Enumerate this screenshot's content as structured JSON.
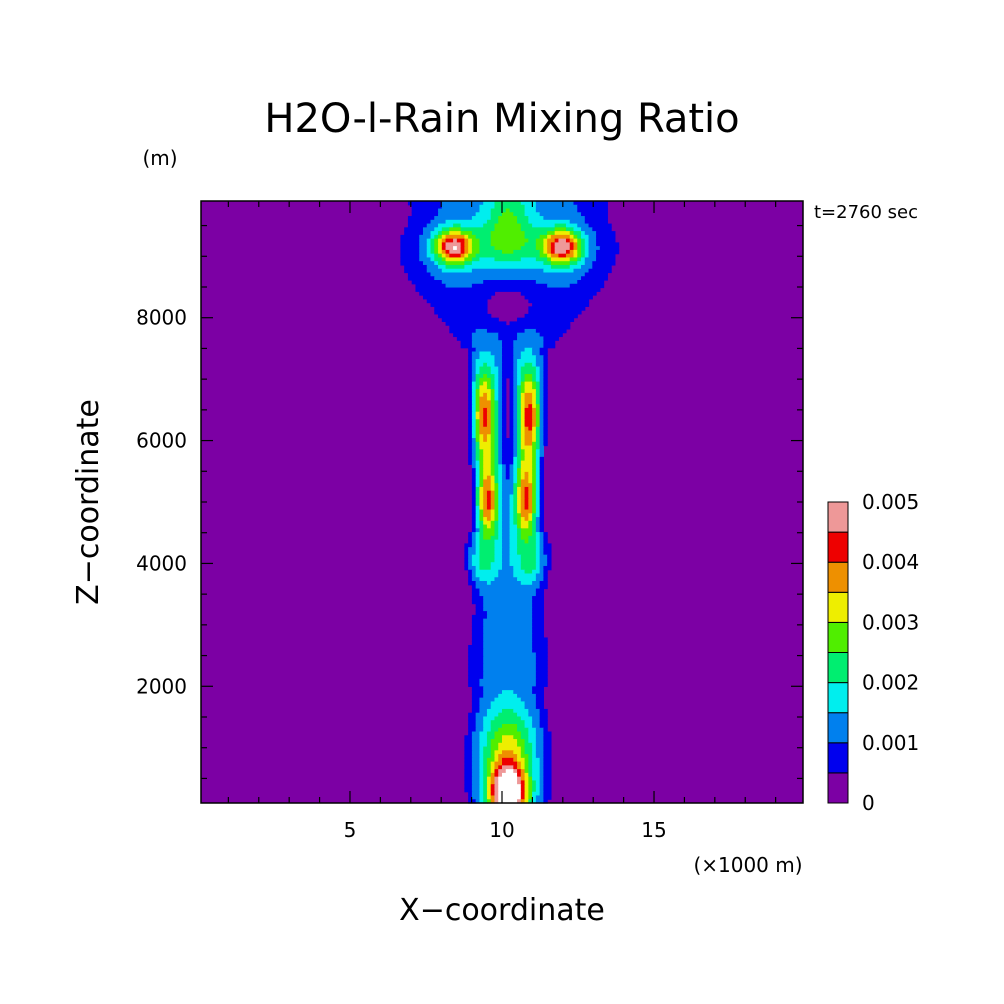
{
  "chart_data": {
    "type": "heatmap",
    "title": "H2O-l-Rain Mixing Ratio",
    "time_label": "t=2760 sec",
    "xlabel": "X−coordinate",
    "ylabel": "Z−coordinate",
    "x_unit": "(×1000 m)",
    "y_unit": "(m)",
    "xlim": [
      0.1,
      19.9
    ],
    "ylim": [
      100,
      9900
    ],
    "x_ticks": [
      5,
      10,
      15
    ],
    "x_tick_labels": [
      "5",
      "10",
      "15"
    ],
    "y_ticks": [
      2000,
      4000,
      6000,
      8000
    ],
    "y_tick_labels": [
      "2000",
      "4000",
      "6000",
      "8000"
    ],
    "legend_placement": "right",
    "grid": false,
    "colorbar": {
      "levels": [
        0,
        0.0005,
        0.001,
        0.0015,
        0.002,
        0.0025,
        0.003,
        0.0035,
        0.004,
        0.0045,
        0.005
      ],
      "labeled_values": [
        "0",
        "0.001",
        "0.002",
        "0.003",
        "0.004",
        "0.005"
      ],
      "colors": [
        "#7c00a4",
        "#0000ee",
        "#0080ee",
        "#00eeee",
        "#00ee70",
        "#50ee00",
        "#eeee00",
        "#ee9000",
        "#ee0000",
        "#ee9898"
      ]
    },
    "features": {
      "core_center_x": 10.2,
      "peak_value": 0.0055,
      "peak_location": [
        10.2,
        300
      ],
      "upper_maxima": [
        [
          8.4,
          9150
        ],
        [
          12.0,
          9150
        ]
      ],
      "mid_maxima": [
        [
          9.4,
          6400
        ],
        [
          10.9,
          6400
        ],
        [
          9.5,
          5000
        ],
        [
          10.8,
          5000
        ]
      ]
    }
  }
}
